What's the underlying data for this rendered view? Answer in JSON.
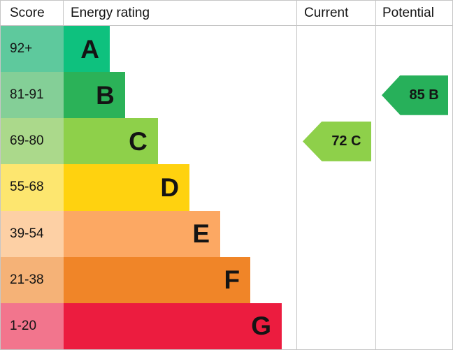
{
  "header": {
    "score": "Score",
    "energy_rating": "Energy rating",
    "current": "Current",
    "potential": "Potential"
  },
  "chart_data": {
    "type": "bar",
    "title": "Energy rating",
    "columns": [
      "Score",
      "Energy rating",
      "Current",
      "Potential"
    ],
    "bands": [
      {
        "score": "92+",
        "letter": "A",
        "bar_width_pct": 19.8,
        "bar_color": "#0ec17e",
        "score_color": "#5ec99d"
      },
      {
        "score": "81-91",
        "letter": "B",
        "bar_width_pct": 26.4,
        "bar_color": "#2bb258",
        "score_color": "#84cf97"
      },
      {
        "score": "69-80",
        "letter": "C",
        "bar_width_pct": 40.5,
        "bar_color": "#8ed04a",
        "score_color": "#abd98b"
      },
      {
        "score": "55-68",
        "letter": "D",
        "bar_width_pct": 54.1,
        "bar_color": "#ffd20f",
        "score_color": "#fde66f"
      },
      {
        "score": "39-54",
        "letter": "E",
        "bar_width_pct": 67.3,
        "bar_color": "#fca863",
        "score_color": "#fdd0a5"
      },
      {
        "score": "21-38",
        "letter": "F",
        "bar_width_pct": 80.2,
        "bar_color": "#f08528",
        "score_color": "#f5b277"
      },
      {
        "score": "1-20",
        "letter": "G",
        "bar_width_pct": 93.7,
        "bar_color": "#ec1c3f",
        "score_color": "#f2758d"
      }
    ],
    "current": {
      "value": 72,
      "band": "C",
      "label": "72 C",
      "color": "#8ed04a",
      "row_index": 2
    },
    "potential": {
      "value": 85,
      "band": "B",
      "label": "85 B",
      "color": "#27b05a",
      "row_index": 1
    }
  }
}
